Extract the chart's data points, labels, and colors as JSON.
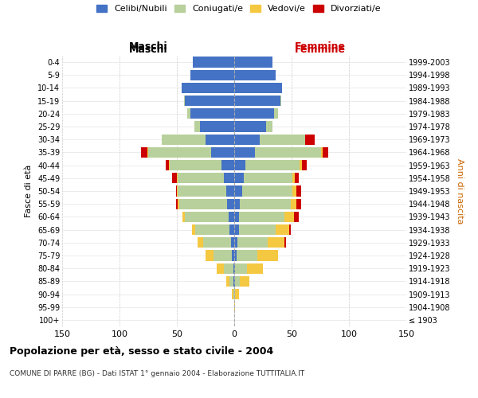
{
  "age_groups": [
    "100+",
    "95-99",
    "90-94",
    "85-89",
    "80-84",
    "75-79",
    "70-74",
    "65-69",
    "60-64",
    "55-59",
    "50-54",
    "45-49",
    "40-44",
    "35-39",
    "30-34",
    "25-29",
    "20-24",
    "15-19",
    "10-14",
    "5-9",
    "0-4"
  ],
  "birth_years": [
    "≤ 1903",
    "1904-1908",
    "1909-1913",
    "1914-1918",
    "1919-1923",
    "1924-1928",
    "1929-1933",
    "1934-1938",
    "1939-1943",
    "1944-1948",
    "1949-1953",
    "1954-1958",
    "1959-1963",
    "1964-1968",
    "1969-1973",
    "1974-1978",
    "1979-1983",
    "1984-1988",
    "1989-1993",
    "1994-1998",
    "1999-2003"
  ],
  "males": {
    "celibi": [
      0,
      0,
      0,
      1,
      1,
      2,
      3,
      4,
      5,
      6,
      7,
      9,
      11,
      20,
      25,
      30,
      38,
      43,
      46,
      38,
      36
    ],
    "coniugati": [
      0,
      0,
      1,
      3,
      8,
      16,
      24,
      30,
      38,
      42,
      42,
      40,
      45,
      55,
      38,
      5,
      3,
      1,
      0,
      0,
      0
    ],
    "vedovi": [
      0,
      0,
      1,
      3,
      6,
      7,
      5,
      3,
      2,
      1,
      1,
      1,
      1,
      1,
      0,
      0,
      0,
      0,
      0,
      0,
      0
    ],
    "divorziati": [
      0,
      0,
      0,
      0,
      0,
      0,
      0,
      0,
      0,
      2,
      1,
      4,
      3,
      5,
      0,
      0,
      0,
      0,
      0,
      0,
      0
    ]
  },
  "females": {
    "nubili": [
      0,
      0,
      0,
      1,
      1,
      2,
      3,
      4,
      4,
      5,
      7,
      8,
      10,
      18,
      22,
      28,
      35,
      40,
      42,
      36,
      33
    ],
    "coniugate": [
      0,
      0,
      1,
      4,
      10,
      18,
      26,
      32,
      40,
      44,
      44,
      43,
      47,
      58,
      40,
      5,
      3,
      1,
      0,
      0,
      0
    ],
    "vedove": [
      0,
      1,
      3,
      8,
      14,
      18,
      15,
      12,
      8,
      5,
      3,
      2,
      2,
      1,
      0,
      0,
      0,
      0,
      0,
      0,
      0
    ],
    "divorziate": [
      0,
      0,
      0,
      0,
      0,
      0,
      1,
      1,
      4,
      4,
      4,
      3,
      4,
      5,
      8,
      0,
      0,
      0,
      0,
      0,
      0
    ]
  },
  "colors": {
    "celibi": "#4472c4",
    "coniugati": "#b8d09b",
    "vedovi": "#f5c842",
    "divorziati": "#cc0000"
  },
  "xlim": 150,
  "title": "Popolazione per età, sesso e stato civile - 2004",
  "subtitle": "COMUNE DI PARRE (BG) - Dati ISTAT 1° gennaio 2004 - Elaborazione TUTTITALIA.IT",
  "ylabel_left": "Fasce di età",
  "ylabel_right": "Anni di nascita"
}
